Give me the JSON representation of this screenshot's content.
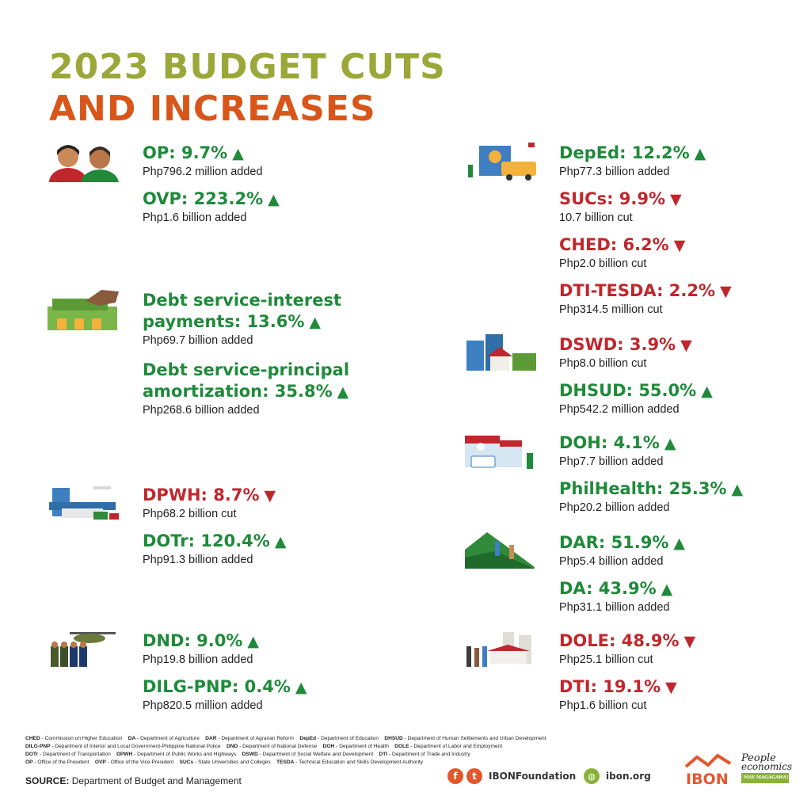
{
  "title": {
    "line1": "2023 BUDGET CUTS",
    "line2": "AND INCREASES"
  },
  "items": [
    {
      "head": "OP: 9.7%",
      "dir": "up",
      "sub": "Php796.2 million added"
    },
    {
      "head": "OVP: 223.2%",
      "dir": "up",
      "sub": "Php1.6 billion added"
    },
    {
      "head1": "Debt service-interest",
      "head": "payments: 13.6%",
      "dir": "up",
      "sub": "Php69.7 billion added"
    },
    {
      "head1": "Debt service-principal",
      "head": "amortization: 35.8%",
      "dir": "up",
      "sub": "Php268.6 billion added"
    },
    {
      "head": "DPWH: 8.7%",
      "dir": "down",
      "sub": "Php68.2 billion cut"
    },
    {
      "head": "DOTr: 120.4%",
      "dir": "up",
      "sub": "Php91.3 billion added"
    },
    {
      "head": "DND: 9.0%",
      "dir": "up",
      "sub": "Php19.8 billion added"
    },
    {
      "head": "DILG-PNP: 0.4%",
      "dir": "up",
      "sub": "Php820.5 million added"
    },
    {
      "head": "DepEd: 12.2%",
      "dir": "up",
      "sub": "Php77.3 billion added"
    },
    {
      "head": "SUCs: 9.9%",
      "dir": "down",
      "sub": "10.7 billion cut"
    },
    {
      "head": "CHED: 6.2%",
      "dir": "down",
      "sub": "Php2.0 billion cut"
    },
    {
      "head": "DTI-TESDA: 2.2%",
      "dir": "down",
      "sub": "Php314.5 million cut"
    },
    {
      "head": "DSWD: 3.9%",
      "dir": "down",
      "sub": "Php8.0 billion cut"
    },
    {
      "head": "DHSUD: 55.0%",
      "dir": "up",
      "sub": "Php542.2 million added"
    },
    {
      "head": "DOH: 4.1%",
      "dir": "up",
      "sub": "Php7.7 billion added"
    },
    {
      "head": "PhilHealth: 25.3%",
      "dir": "up",
      "sub": "Php20.2 billion added"
    },
    {
      "head": "DAR: 51.9%",
      "dir": "up",
      "sub": "Php5.4 billion added"
    },
    {
      "head": "DA: 43.9%",
      "dir": "up",
      "sub": "Php31.1 billion added"
    },
    {
      "head": "DOLE: 48.9%",
      "dir": "down",
      "sub": "Php25.1 billion cut"
    },
    {
      "head": "DTI: 19.1%",
      "dir": "down",
      "sub": "Php1.6 billion cut"
    }
  ],
  "arrows": {
    "up": "▲",
    "down": "▼"
  },
  "colors": {
    "increase": "#1f8a3a",
    "cut": "#c0272d",
    "title_green": "#9aa83a",
    "title_orange": "#d9561a"
  },
  "legend": [
    [
      "CHED",
      " - Commission on Higher Education"
    ],
    [
      "DA",
      " - Department of Agriculture"
    ],
    [
      "DAR",
      " - Department of Agrarian Reform"
    ],
    [
      "DepEd",
      " - Department of Education"
    ],
    [
      "DHSUD",
      " - Department of Human Settlements and Urban Development"
    ],
    [
      "DILG-PNP",
      " - Department of Interior and Local Government-Philippine National Police"
    ],
    [
      "DND",
      " - Department of National Defense"
    ],
    [
      "DOH",
      " - Department of Health"
    ],
    [
      "DOLE",
      " - Department of Labor and Employment"
    ],
    [
      "DOTr",
      " - Department of Transportation"
    ],
    [
      "DPWH",
      " - Department of Public Works and Highways"
    ],
    [
      "DSWD",
      " - Department of Social Welfare and Development"
    ],
    [
      "DTI",
      " - Department of Trade and Industry"
    ],
    [
      "OP",
      " - Office of the President"
    ],
    [
      "OVP",
      " - Office of the Vice President"
    ],
    [
      "SUCs",
      " - State Universities and Colleges"
    ],
    [
      "TESDA",
      " - Technical Education and Skills Development Authority"
    ]
  ],
  "source": {
    "label": "SOURCE:",
    "text": "Department of Budget and Management"
  },
  "social": {
    "handle": "IBONFoundation",
    "website": "ibon.org",
    "fb": "f",
    "tw": "t"
  },
  "brand": {
    "name": "IBON",
    "tagline1": "People",
    "tagline2": "economics",
    "tagline3": "MAY MAGAGAWA!"
  }
}
